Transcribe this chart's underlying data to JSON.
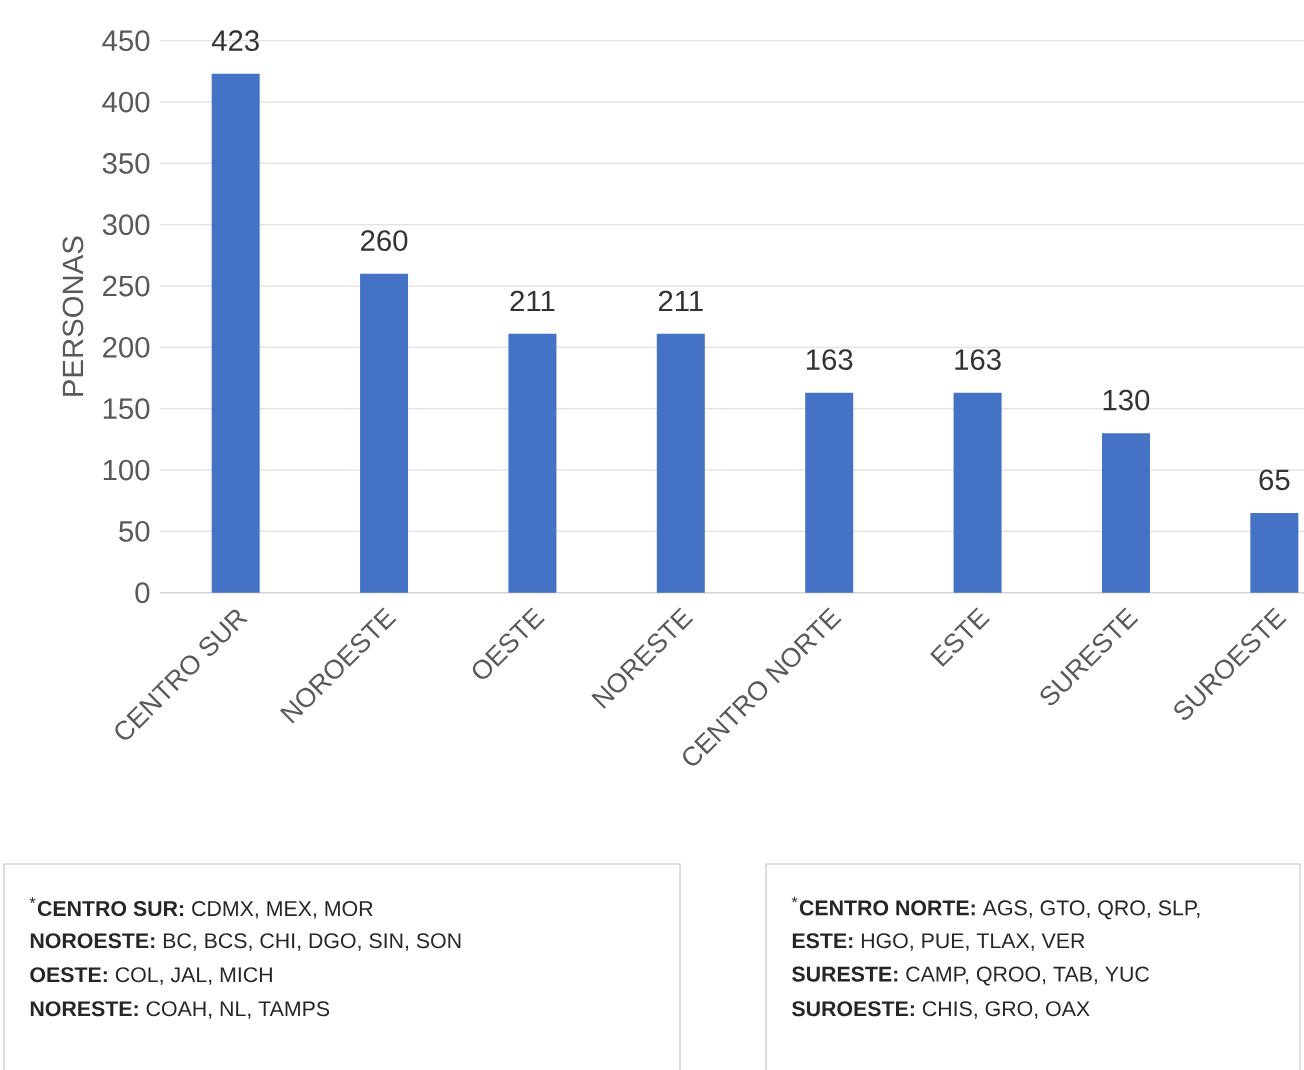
{
  "chart_data": {
    "type": "bar",
    "ylabel": "PERSONAS",
    "categories": [
      "CENTRO SUR",
      "NOROESTE",
      "OESTE",
      "NORESTE",
      "CENTRO NORTE",
      "ESTE",
      "SURESTE",
      "SUROESTE"
    ],
    "values": [
      423,
      260,
      211,
      211,
      163,
      163,
      130,
      65
    ],
    "color": "#4472c4",
    "ylim": [
      0,
      450
    ],
    "yticks": [
      0,
      50,
      100,
      150,
      200,
      250,
      300,
      350,
      400,
      450
    ],
    "grid": "y",
    "data_labels": true,
    "annotations": [
      "$^{*}$**CENTRO SUR:** CDMX, MEX, MOR",
      "**NOROESTE:** BC, BCS, CHI, DGO, SIN, SON",
      "**OESTE:** COL, JAL, MICH",
      "**NORESTE:** COAH, NL, TAMPS",
      "$^{*}$**CENTRO NORTE:** AGS, GTO, QRO, SLP,",
      "**ESTE:** HGO, PUE, TLAX, VER",
      "**SURESTE:** CAMP, QROO, TAB, YUC",
      "**SUROESTE:** CHIS, GRO, OAX"
    ]
  }
}
